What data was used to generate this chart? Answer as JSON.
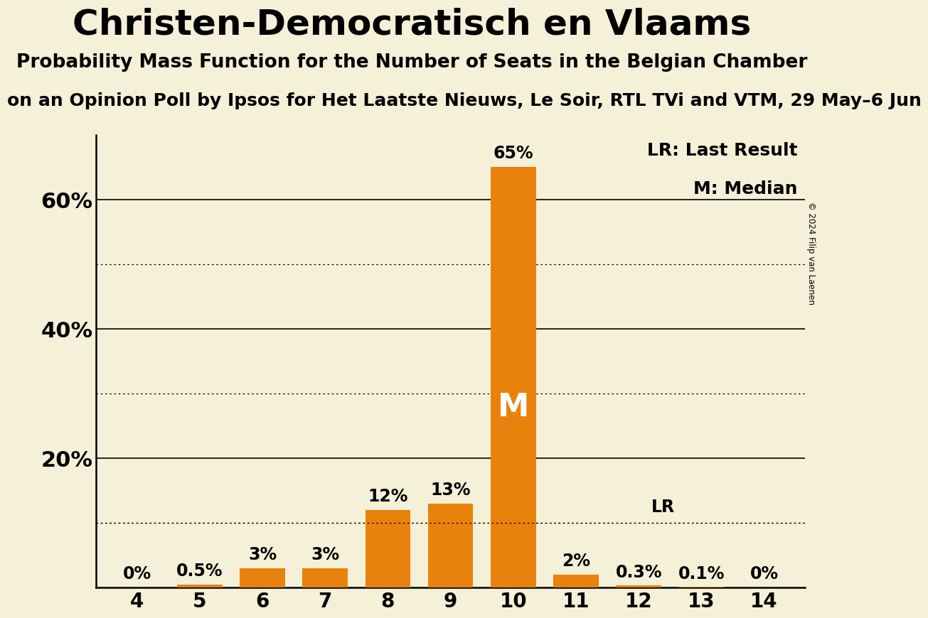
{
  "title": "Christen-Democratisch en Vlaams",
  "subtitle": "Probability Mass Function for the Number of Seats in the Belgian Chamber",
  "subtitle2": "on an Opinion Poll by Ipsos for Het Laatste Nieuws, Le Soir, RTL TVi and VTM, 29 May–6 Jun",
  "copyright": "© 2024 Filip van Laenen",
  "categories": [
    4,
    5,
    6,
    7,
    8,
    9,
    10,
    11,
    12,
    13,
    14
  ],
  "values": [
    0.0,
    0.5,
    3.0,
    3.0,
    12.0,
    13.0,
    65.0,
    2.0,
    0.3,
    0.1,
    0.0
  ],
  "bar_color": "#e8820c",
  "bar_labels": [
    "0%",
    "0.5%",
    "3%",
    "3%",
    "12%",
    "13%",
    "65%",
    "2%",
    "0.3%",
    "0.1%",
    "0%"
  ],
  "median_seat": 10,
  "median_label": "M",
  "lr_value": 10.0,
  "lr_label": "LR",
  "lr_seat_label_idx": 8,
  "legend_lr": "LR: Last Result",
  "legend_m": "M: Median",
  "ylim": [
    0,
    70
  ],
  "solid_gridlines": [
    20,
    40,
    60
  ],
  "dotted_gridlines": [
    10,
    30,
    50
  ],
  "ytick_positions": [
    20,
    40,
    60
  ],
  "ytick_labels": [
    "20%",
    "40%",
    "60%"
  ],
  "background_color": "#f5f0d8",
  "title_fontsize": 36,
  "subtitle_fontsize": 19,
  "subtitle2_fontsize": 18,
  "bar_label_fontsize": 17,
  "axis_tick_fontsize": 20,
  "ytick_fontsize": 22,
  "legend_fontsize": 18,
  "median_fontsize": 32
}
